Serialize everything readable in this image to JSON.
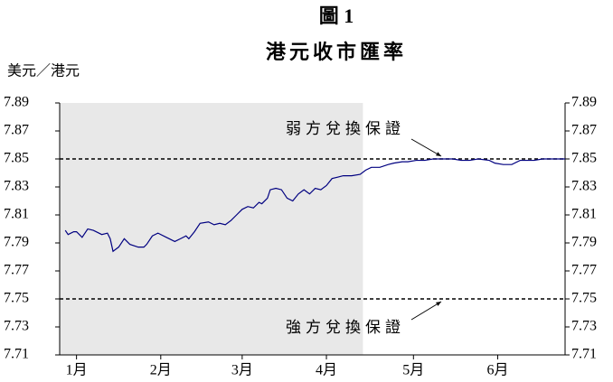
{
  "chart_data": {
    "type": "line",
    "title": "圖 1",
    "subtitle": "港元收市匯率",
    "y_axis_label": "美元／港元",
    "xlim": [
      0,
      180
    ],
    "xticks": [
      {
        "value": 6,
        "label": "1月"
      },
      {
        "value": 36,
        "label": "2月"
      },
      {
        "value": 65,
        "label": "3月"
      },
      {
        "value": 95,
        "label": "4月"
      },
      {
        "value": 126,
        "label": "5月"
      },
      {
        "value": 156,
        "label": "6月"
      }
    ],
    "ylim": [
      7.71,
      7.89
    ],
    "yticks": [
      7.71,
      7.73,
      7.75,
      7.77,
      7.79,
      7.81,
      7.83,
      7.85,
      7.87,
      7.89
    ],
    "shaded_xrange": [
      0,
      108
    ],
    "reference_lines": [
      {
        "value": 7.85,
        "label": "弱方兌換保證"
      },
      {
        "value": 7.75,
        "label": "強方兌換保證"
      }
    ],
    "series": [
      {
        "color": "#000080",
        "x": [
          2,
          3,
          5,
          6,
          8,
          10,
          12,
          15,
          17,
          18,
          19,
          21,
          23,
          25,
          28,
          30,
          31,
          33,
          35,
          38,
          41,
          43,
          45,
          46,
          48,
          50,
          53,
          55,
          57,
          59,
          61,
          63,
          65,
          67,
          69,
          71,
          72,
          74,
          75,
          77,
          79,
          81,
          83,
          85,
          87,
          89,
          91,
          93,
          95,
          97,
          99,
          101,
          104,
          107,
          109,
          111,
          114,
          117,
          119,
          122,
          124,
          127,
          130,
          133,
          137,
          140,
          143,
          146,
          149,
          153,
          155,
          158,
          161,
          164,
          169,
          172,
          176,
          180
        ],
        "values": [
          7.799,
          7.796,
          7.798,
          7.798,
          7.794,
          7.8,
          7.799,
          7.796,
          7.797,
          7.793,
          7.784,
          7.787,
          7.793,
          7.789,
          7.787,
          7.787,
          7.789,
          7.795,
          7.797,
          7.794,
          7.791,
          7.793,
          7.795,
          7.793,
          7.798,
          7.804,
          7.805,
          7.803,
          7.804,
          7.803,
          7.806,
          7.81,
          7.814,
          7.816,
          7.815,
          7.819,
          7.818,
          7.822,
          7.828,
          7.829,
          7.828,
          7.822,
          7.82,
          7.825,
          7.828,
          7.825,
          7.829,
          7.828,
          7.831,
          7.836,
          7.837,
          7.838,
          7.838,
          7.839,
          7.842,
          7.844,
          7.844,
          7.846,
          7.847,
          7.848,
          7.848,
          7.849,
          7.849,
          7.85,
          7.85,
          7.85,
          7.849,
          7.849,
          7.85,
          7.849,
          7.847,
          7.846,
          7.846,
          7.849,
          7.849,
          7.85,
          7.85,
          7.85
        ]
      }
    ]
  }
}
